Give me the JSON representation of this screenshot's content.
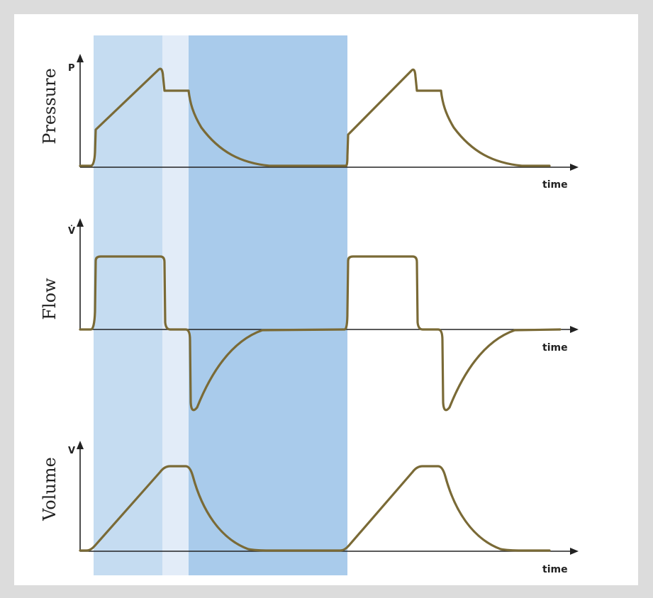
{
  "colors": {
    "phase_inspiration": "#c5dcf1",
    "phase_pause": "#e2ecf8",
    "phase_expiration": "#a9cbeb",
    "curve": "#7a6a36",
    "axis": "#222222"
  },
  "panels": [
    {
      "id": "pressure",
      "ylabel": "Pressure",
      "symbol": "P",
      "xlabel": "time"
    },
    {
      "id": "flow",
      "ylabel": "Flow",
      "symbol": "V̇",
      "xlabel": "time"
    },
    {
      "id": "volume",
      "ylabel": "Volume",
      "symbol": "V",
      "xlabel": "time"
    }
  ]
}
